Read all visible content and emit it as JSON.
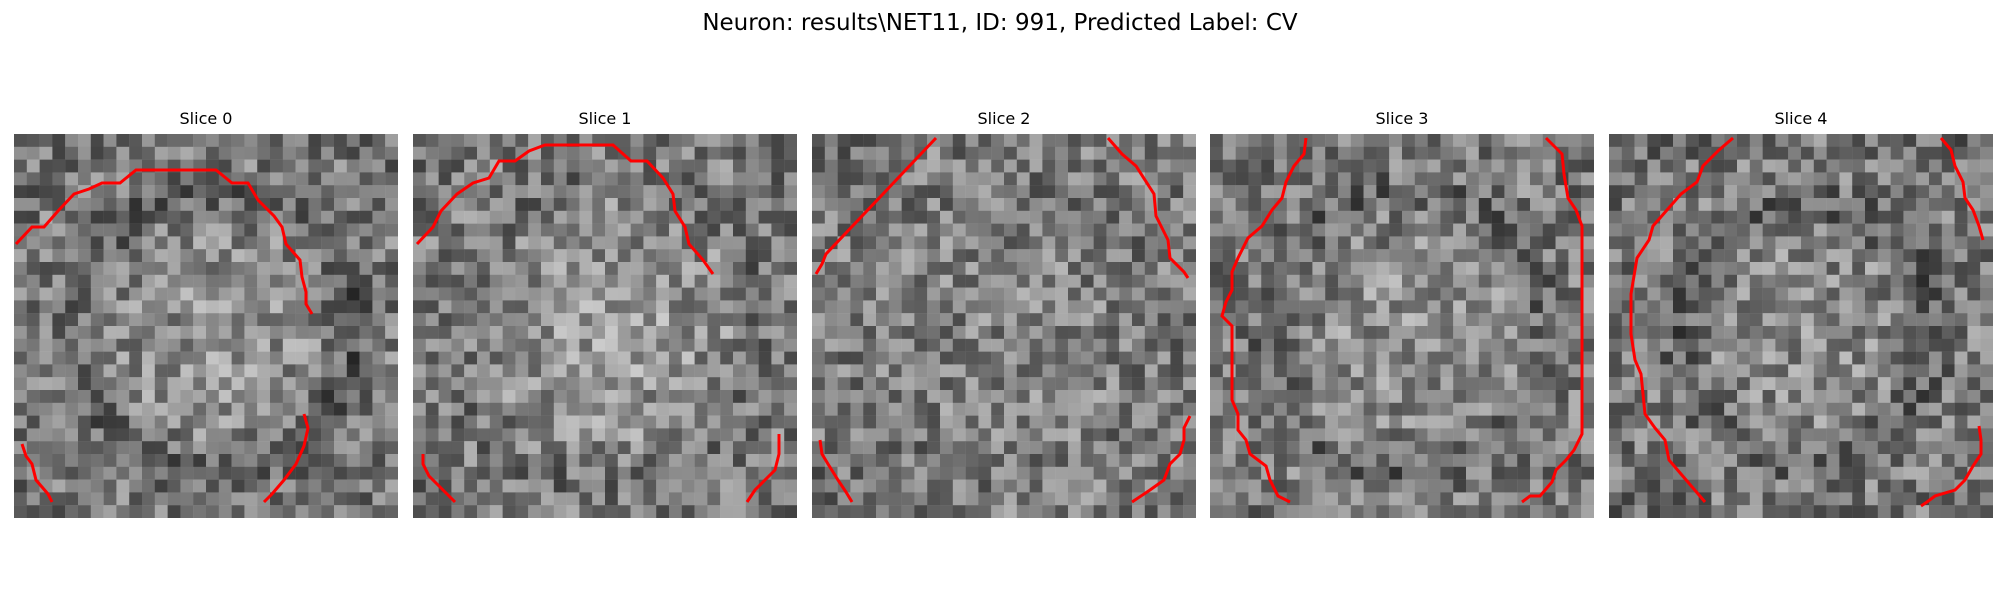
{
  "figure": {
    "title": "Neuron: results\\NET11, ID: 991, Predicted Label: CV"
  },
  "colors": {
    "background": "#ffffff",
    "contour": "#ff0000",
    "colormap": "grayscale"
  },
  "slices": [
    {
      "title": "Slice 0"
    },
    {
      "title": "Slice 1"
    },
    {
      "title": "Slice 2"
    },
    {
      "title": "Slice 3"
    },
    {
      "title": "Slice 4"
    }
  ]
}
